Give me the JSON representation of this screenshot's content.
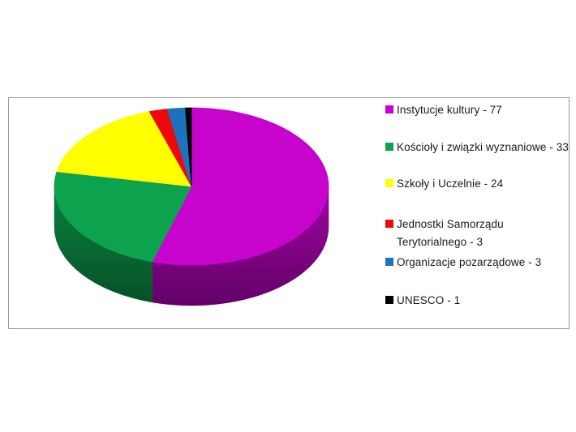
{
  "page": {
    "background_color": "#ffffff"
  },
  "chart_data": {
    "type": "pie",
    "style": "3d",
    "direction": "clockwise",
    "start_angle_deg": 0,
    "legend_position": "right",
    "grid": false,
    "labels": [
      "Instytucje kultury",
      "Kościoły i związki wyznaniowe",
      "Szkoły i Uczelnie",
      "Jednostki Samorządu Terytorialnego",
      "Organizacje pozarządowe",
      "UNESCO"
    ],
    "values": [
      77,
      33,
      24,
      3,
      3,
      1
    ],
    "colors": [
      "#C604CD",
      "#0CA24E",
      "#FFFF00",
      "#EE0808",
      "#1E72BD",
      "#000000"
    ],
    "legend": {
      "position": "right",
      "entries": [
        "Instytucje kultury - 77",
        "Kościoły i związki wyznaniowe - 33",
        "Szkoły i Uczelnie - 24",
        "Jednostki Samorządu Terytorialnego - 3",
        "Organizacje pozarządowe - 3",
        "UNESCO - 1"
      ]
    }
  }
}
